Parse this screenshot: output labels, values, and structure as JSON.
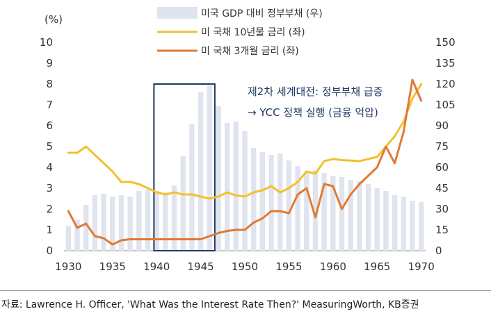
{
  "chart_data": {
    "type": "bar+line",
    "y_left_unit": "(%)",
    "y_left_ticks": [
      0,
      1,
      2,
      3,
      4,
      5,
      6,
      7,
      8,
      9,
      10
    ],
    "y_left_lim": [
      0,
      10
    ],
    "y_right_ticks": [
      0,
      15,
      30,
      45,
      60,
      75,
      90,
      105,
      120,
      135,
      150
    ],
    "y_right_lim": [
      0,
      150
    ],
    "x_ticks": [
      1930,
      1935,
      1940,
      1945,
      1950,
      1955,
      1960,
      1965,
      1970
    ],
    "x_lim": [
      1929.5,
      1970.5
    ],
    "series": [
      {
        "name": "미국 GDP 대비 정부부채 (우)",
        "kind": "bar",
        "axis": "right",
        "color": "#dfe4ee",
        "x": [
          1930,
          1931,
          1932,
          1933,
          1934,
          1935,
          1936,
          1937,
          1938,
          1939,
          1940,
          1941,
          1942,
          1943,
          1944,
          1945,
          1946,
          1947,
          1948,
          1949,
          1950,
          1951,
          1952,
          1953,
          1954,
          1955,
          1956,
          1957,
          1958,
          1959,
          1960,
          1961,
          1962,
          1963,
          1964,
          1965,
          1966,
          1967,
          1968,
          1969,
          1970
        ],
        "values": [
          18,
          22,
          33,
          40,
          41,
          39,
          40,
          39,
          43,
          44,
          43,
          42,
          47,
          68,
          91,
          114,
          119,
          104,
          92,
          93,
          86,
          74,
          71,
          69,
          70,
          65,
          61,
          57,
          58,
          56,
          54,
          53,
          51,
          50,
          48,
          45,
          43,
          40,
          39,
          36,
          35
        ]
      },
      {
        "name": "미 국채 10년물 금리 (좌)",
        "kind": "line",
        "axis": "left",
        "color": "#f2c12e",
        "x": [
          1930,
          1931,
          1932,
          1933,
          1934,
          1935,
          1936,
          1937,
          1938,
          1939,
          1940,
          1941,
          1942,
          1943,
          1944,
          1945,
          1946,
          1947,
          1948,
          1949,
          1950,
          1951,
          1952,
          1953,
          1954,
          1955,
          1956,
          1957,
          1958,
          1959,
          1960,
          1961,
          1962,
          1963,
          1964,
          1965,
          1966,
          1967,
          1968,
          1969,
          1970
        ],
        "values": [
          4.7,
          4.7,
          5.0,
          4.6,
          4.2,
          3.8,
          3.3,
          3.3,
          3.2,
          3.0,
          2.8,
          2.7,
          2.8,
          2.7,
          2.7,
          2.6,
          2.5,
          2.6,
          2.8,
          2.65,
          2.6,
          2.8,
          2.9,
          3.1,
          2.8,
          3.0,
          3.3,
          3.8,
          3.7,
          4.3,
          4.4,
          4.35,
          4.33,
          4.3,
          4.4,
          4.5,
          5.0,
          5.5,
          6.2,
          7.3,
          8.0
        ]
      },
      {
        "name": "미 국채 3개월 금리 (좌)",
        "kind": "line",
        "axis": "left",
        "color": "#e07a35",
        "x": [
          1930,
          1931,
          1932,
          1933,
          1934,
          1935,
          1936,
          1937,
          1938,
          1939,
          1940,
          1941,
          1942,
          1943,
          1944,
          1945,
          1946,
          1947,
          1948,
          1949,
          1950,
          1951,
          1952,
          1953,
          1954,
          1955,
          1956,
          1957,
          1958,
          1959,
          1960,
          1961,
          1962,
          1963,
          1964,
          1965,
          1966,
          1967,
          1968,
          1969,
          1970
        ],
        "values": [
          1.9,
          1.1,
          1.3,
          0.7,
          0.6,
          0.3,
          0.5,
          0.55,
          0.55,
          0.55,
          0.55,
          0.55,
          0.55,
          0.55,
          0.55,
          0.55,
          0.7,
          0.85,
          0.95,
          1.0,
          1.0,
          1.35,
          1.55,
          1.9,
          1.9,
          1.8,
          2.7,
          3.0,
          1.6,
          3.2,
          3.1,
          2.0,
          2.7,
          3.2,
          3.6,
          4.0,
          5.0,
          4.2,
          5.7,
          8.2,
          7.2
        ]
      }
    ],
    "highlight_box": {
      "x_from": 1939.7,
      "x_to": 1946.6
    },
    "annotation": {
      "line1": "제2차 세계대전: 정부부채 급증",
      "line2": "→ YCC 정책 실행 (금융 억압)"
    },
    "legend_position": "top-center"
  },
  "source_text": "자료: Lawrence H. Officer, 'What Was the Interest Rate Then?' MeasuringWorth, KB증권"
}
